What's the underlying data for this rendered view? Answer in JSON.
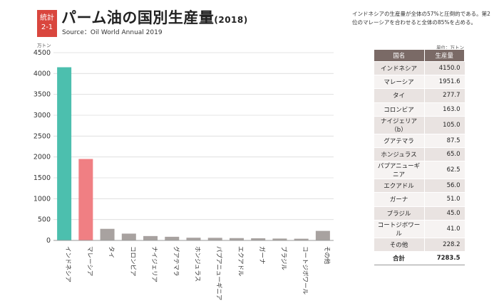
{
  "header": {
    "badge_line1": "統計",
    "badge_line2": "2-1",
    "title": "パーム油の国別生産量",
    "title_year": "(2018)",
    "source": "Source：Oil World Annual 2019"
  },
  "note": "インドネシアの生産量が全体の57%と圧倒的である。第2位のマレーシアを合わせると全体の85%を占める。",
  "table": {
    "unit": "単位：万トン",
    "headers": [
      "国名",
      "生産量"
    ],
    "rows": [
      {
        "name": "インドネシア",
        "value": "4150.0"
      },
      {
        "name": "マレーシア",
        "value": "1951.6"
      },
      {
        "name": "タイ",
        "value": "277.7"
      },
      {
        "name": "コロンビア",
        "value": "163.0"
      },
      {
        "name": "ナイジェリア（b）",
        "value": "105.0"
      },
      {
        "name": "グアテマラ",
        "value": "87.5"
      },
      {
        "name": "ホンジュラス",
        "value": "65.0"
      },
      {
        "name": "パプアニューギニア",
        "value": "62.5"
      },
      {
        "name": "エクアドル",
        "value": "56.0"
      },
      {
        "name": "ガーナ",
        "value": "51.0"
      },
      {
        "name": "ブラジル",
        "value": "45.0"
      },
      {
        "name": "コートジボワール",
        "value": "41.0"
      },
      {
        "name": "その他",
        "value": "228.2"
      }
    ],
    "total": {
      "name": "合計",
      "value": "7283.5"
    }
  },
  "chart_data": {
    "type": "bar",
    "ylabel": "万トン",
    "ylim": [
      0,
      4500
    ],
    "yticks": [
      0,
      500,
      1000,
      1500,
      2000,
      2500,
      3000,
      3500,
      4000,
      4500
    ],
    "grid": true,
    "categories": [
      "インドネシア",
      "マレーシア",
      "タイ",
      "コロンビア",
      "ナイジェリア",
      "グアテマラ",
      "ホンジュラス",
      "パプアニューギニア",
      "エクアドル",
      "ガーナ",
      "ブラジル",
      "コートジボワール",
      "その他"
    ],
    "values": [
      4150.0,
      1951.6,
      277.7,
      163.0,
      105.0,
      87.5,
      65.0,
      62.5,
      56.0,
      51.0,
      45.0,
      41.0,
      228.2
    ],
    "colors": [
      "#4cbfae",
      "#f07f83",
      "#a8a2a0",
      "#a8a2a0",
      "#a8a2a0",
      "#a8a2a0",
      "#a8a2a0",
      "#a8a2a0",
      "#a8a2a0",
      "#a8a2a0",
      "#a8a2a0",
      "#a8a2a0",
      "#a8a2a0"
    ]
  }
}
